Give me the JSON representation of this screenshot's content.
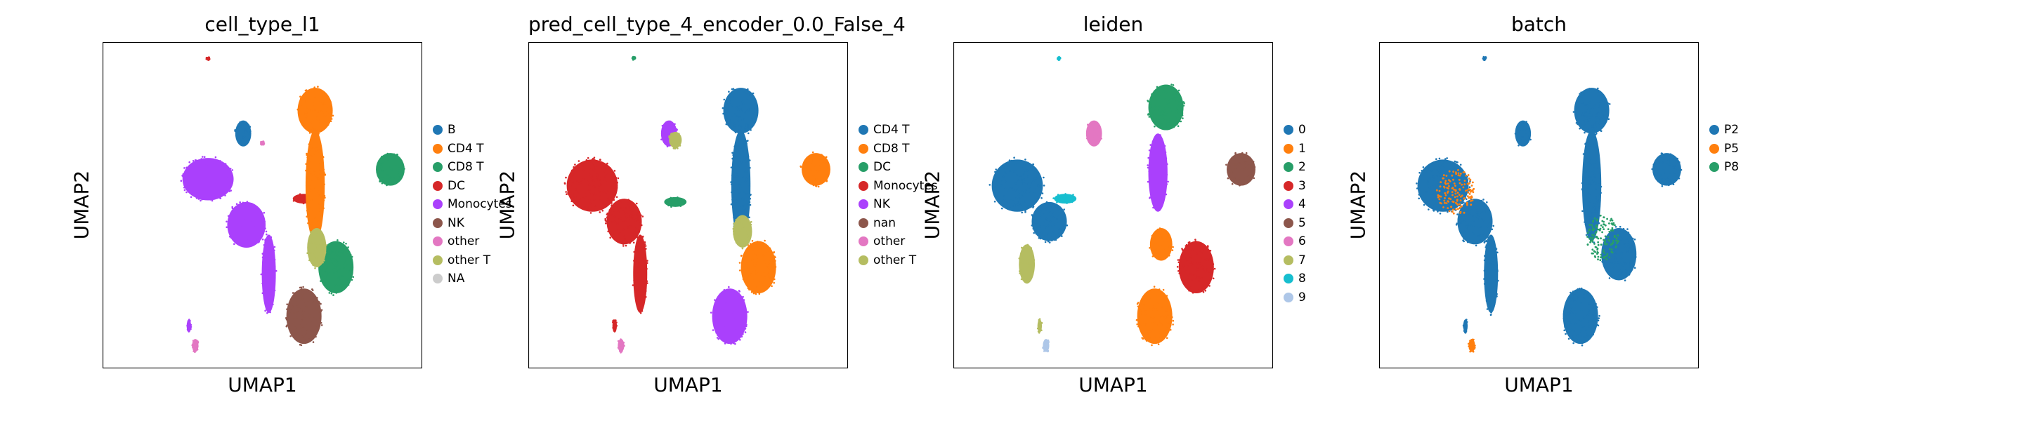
{
  "chart_data": [
    {
      "type": "scatter",
      "title": "cell_type_l1",
      "xlabel": "UMAP1",
      "ylabel": "UMAP2",
      "legend_placement": "right",
      "legend": [
        {
          "label": "B",
          "color": "#1f77b4"
        },
        {
          "label": "CD4 T",
          "color": "#ff7f0e"
        },
        {
          "label": "CD8 T",
          "color": "#279e68"
        },
        {
          "label": "DC",
          "color": "#d62728"
        },
        {
          "label": "Monocytes",
          "color": "#aa40fc"
        },
        {
          "label": "NK",
          "color": "#8c564b"
        },
        {
          "label": "other",
          "color": "#e377c2"
        },
        {
          "label": "other T",
          "color": "#b5bd61"
        },
        {
          "label": "NA",
          "color": "#cccccc"
        }
      ],
      "clusters": [
        {
          "cx": 0.33,
          "cy": 0.42,
          "rx": 0.08,
          "ry": 0.065,
          "color": "#aa40fc"
        },
        {
          "cx": 0.45,
          "cy": 0.56,
          "rx": 0.06,
          "ry": 0.07,
          "color": "#aa40fc"
        },
        {
          "cx": 0.52,
          "cy": 0.71,
          "rx": 0.022,
          "ry": 0.12,
          "color": "#aa40fc"
        },
        {
          "cx": 0.63,
          "cy": 0.48,
          "rx": 0.035,
          "ry": 0.015,
          "color": "#d62728"
        },
        {
          "cx": 0.44,
          "cy": 0.28,
          "rx": 0.025,
          "ry": 0.04,
          "color": "#1f77b4"
        },
        {
          "cx": 0.665,
          "cy": 0.21,
          "rx": 0.055,
          "ry": 0.07,
          "color": "#ff7f0e"
        },
        {
          "cx": 0.665,
          "cy": 0.44,
          "rx": 0.03,
          "ry": 0.17,
          "color": "#ff7f0e"
        },
        {
          "cx": 0.73,
          "cy": 0.69,
          "rx": 0.055,
          "ry": 0.08,
          "color": "#279e68"
        },
        {
          "cx": 0.9,
          "cy": 0.39,
          "rx": 0.045,
          "ry": 0.05,
          "color": "#279e68"
        },
        {
          "cx": 0.67,
          "cy": 0.63,
          "rx": 0.03,
          "ry": 0.06,
          "color": "#b5bd61"
        },
        {
          "cx": 0.63,
          "cy": 0.84,
          "rx": 0.055,
          "ry": 0.085,
          "color": "#8c564b"
        },
        {
          "cx": 0.29,
          "cy": 0.93,
          "rx": 0.01,
          "ry": 0.02,
          "color": "#e377c2"
        },
        {
          "cx": 0.27,
          "cy": 0.87,
          "rx": 0.007,
          "ry": 0.02,
          "color": "#aa40fc"
        },
        {
          "cx": 0.33,
          "cy": 0.05,
          "rx": 0.005,
          "ry": 0.005,
          "color": "#d62728"
        },
        {
          "cx": 0.5,
          "cy": 0.31,
          "rx": 0.006,
          "ry": 0.006,
          "color": "#e377c2"
        }
      ]
    },
    {
      "type": "scatter",
      "title": "pred_cell_type_4_encoder_0.0_False_4",
      "xlabel": "UMAP1",
      "ylabel": "UMAP2",
      "legend_placement": "right",
      "legend": [
        {
          "label": "CD4 T",
          "color": "#1f77b4"
        },
        {
          "label": "CD8 T",
          "color": "#ff7f0e"
        },
        {
          "label": "DC",
          "color": "#279e68"
        },
        {
          "label": "Monocytes",
          "color": "#d62728"
        },
        {
          "label": "NK",
          "color": "#aa40fc"
        },
        {
          "label": "nan",
          "color": "#8c564b"
        },
        {
          "label": "other",
          "color": "#e377c2"
        },
        {
          "label": "other T",
          "color": "#b5bd61"
        }
      ],
      "clusters": [
        {
          "cx": 0.2,
          "cy": 0.44,
          "rx": 0.08,
          "ry": 0.08,
          "color": "#d62728"
        },
        {
          "cx": 0.3,
          "cy": 0.55,
          "rx": 0.055,
          "ry": 0.07,
          "color": "#d62728"
        },
        {
          "cx": 0.35,
          "cy": 0.71,
          "rx": 0.022,
          "ry": 0.12,
          "color": "#d62728"
        },
        {
          "cx": 0.46,
          "cy": 0.49,
          "rx": 0.035,
          "ry": 0.015,
          "color": "#279e68"
        },
        {
          "cx": 0.44,
          "cy": 0.28,
          "rx": 0.025,
          "ry": 0.04,
          "color": "#aa40fc"
        },
        {
          "cx": 0.46,
          "cy": 0.3,
          "rx": 0.02,
          "ry": 0.025,
          "color": "#b5bd61"
        },
        {
          "cx": 0.665,
          "cy": 0.21,
          "rx": 0.055,
          "ry": 0.07,
          "color": "#1f77b4"
        },
        {
          "cx": 0.665,
          "cy": 0.44,
          "rx": 0.03,
          "ry": 0.17,
          "color": "#1f77b4"
        },
        {
          "cx": 0.72,
          "cy": 0.69,
          "rx": 0.055,
          "ry": 0.08,
          "color": "#ff7f0e"
        },
        {
          "cx": 0.9,
          "cy": 0.39,
          "rx": 0.045,
          "ry": 0.05,
          "color": "#ff7f0e"
        },
        {
          "cx": 0.67,
          "cy": 0.58,
          "rx": 0.03,
          "ry": 0.05,
          "color": "#b5bd61"
        },
        {
          "cx": 0.63,
          "cy": 0.84,
          "rx": 0.055,
          "ry": 0.085,
          "color": "#aa40fc"
        },
        {
          "cx": 0.29,
          "cy": 0.93,
          "rx": 0.01,
          "ry": 0.02,
          "color": "#e377c2"
        },
        {
          "cx": 0.27,
          "cy": 0.87,
          "rx": 0.007,
          "ry": 0.02,
          "color": "#d62728"
        },
        {
          "cx": 0.33,
          "cy": 0.05,
          "rx": 0.005,
          "ry": 0.005,
          "color": "#279e68"
        }
      ]
    },
    {
      "type": "scatter",
      "title": "leiden",
      "xlabel": "UMAP1",
      "ylabel": "UMAP2",
      "legend_placement": "right",
      "legend": [
        {
          "label": "0",
          "color": "#1f77b4"
        },
        {
          "label": "1",
          "color": "#ff7f0e"
        },
        {
          "label": "2",
          "color": "#279e68"
        },
        {
          "label": "3",
          "color": "#d62728"
        },
        {
          "label": "4",
          "color": "#aa40fc"
        },
        {
          "label": "5",
          "color": "#8c564b"
        },
        {
          "label": "6",
          "color": "#e377c2"
        },
        {
          "label": "7",
          "color": "#b5bd61"
        },
        {
          "label": "8",
          "color": "#17becf"
        },
        {
          "label": "9",
          "color": "#aec7e8"
        }
      ],
      "clusters": [
        {
          "cx": 0.2,
          "cy": 0.44,
          "rx": 0.08,
          "ry": 0.08,
          "color": "#1f77b4"
        },
        {
          "cx": 0.3,
          "cy": 0.55,
          "rx": 0.055,
          "ry": 0.06,
          "color": "#1f77b4"
        },
        {
          "cx": 0.23,
          "cy": 0.68,
          "rx": 0.025,
          "ry": 0.06,
          "color": "#b5bd61"
        },
        {
          "cx": 0.35,
          "cy": 0.48,
          "rx": 0.035,
          "ry": 0.015,
          "color": "#17becf"
        },
        {
          "cx": 0.44,
          "cy": 0.28,
          "rx": 0.025,
          "ry": 0.04,
          "color": "#e377c2"
        },
        {
          "cx": 0.665,
          "cy": 0.2,
          "rx": 0.055,
          "ry": 0.07,
          "color": "#279e68"
        },
        {
          "cx": 0.64,
          "cy": 0.4,
          "rx": 0.03,
          "ry": 0.12,
          "color": "#aa40fc"
        },
        {
          "cx": 0.65,
          "cy": 0.62,
          "rx": 0.035,
          "ry": 0.05,
          "color": "#ff7f0e"
        },
        {
          "cx": 0.76,
          "cy": 0.69,
          "rx": 0.055,
          "ry": 0.08,
          "color": "#d62728"
        },
        {
          "cx": 0.9,
          "cy": 0.39,
          "rx": 0.045,
          "ry": 0.05,
          "color": "#8c564b"
        },
        {
          "cx": 0.63,
          "cy": 0.84,
          "rx": 0.055,
          "ry": 0.085,
          "color": "#ff7f0e"
        },
        {
          "cx": 0.29,
          "cy": 0.93,
          "rx": 0.01,
          "ry": 0.02,
          "color": "#aec7e8"
        },
        {
          "cx": 0.27,
          "cy": 0.87,
          "rx": 0.007,
          "ry": 0.02,
          "color": "#b5bd61"
        },
        {
          "cx": 0.33,
          "cy": 0.05,
          "rx": 0.005,
          "ry": 0.005,
          "color": "#17becf"
        }
      ]
    },
    {
      "type": "scatter",
      "title": "batch",
      "xlabel": "UMAP1",
      "ylabel": "UMAP2",
      "legend_placement": "right",
      "legend": [
        {
          "label": "P2",
          "color": "#1f77b4"
        },
        {
          "label": "P5",
          "color": "#ff7f0e"
        },
        {
          "label": "P8",
          "color": "#279e68"
        }
      ],
      "clusters": [
        {
          "cx": 0.2,
          "cy": 0.44,
          "rx": 0.08,
          "ry": 0.08,
          "color": "#1f77b4"
        },
        {
          "cx": 0.3,
          "cy": 0.55,
          "rx": 0.055,
          "ry": 0.07,
          "color": "#1f77b4"
        },
        {
          "cx": 0.35,
          "cy": 0.71,
          "rx": 0.022,
          "ry": 0.12,
          "color": "#1f77b4"
        },
        {
          "cx": 0.45,
          "cy": 0.28,
          "rx": 0.025,
          "ry": 0.04,
          "color": "#1f77b4"
        },
        {
          "cx": 0.665,
          "cy": 0.21,
          "rx": 0.055,
          "ry": 0.07,
          "color": "#1f77b4"
        },
        {
          "cx": 0.665,
          "cy": 0.44,
          "rx": 0.03,
          "ry": 0.17,
          "color": "#1f77b4"
        },
        {
          "cx": 0.75,
          "cy": 0.65,
          "rx": 0.055,
          "ry": 0.08,
          "color": "#1f77b4"
        },
        {
          "cx": 0.9,
          "cy": 0.39,
          "rx": 0.045,
          "ry": 0.05,
          "color": "#1f77b4"
        },
        {
          "cx": 0.63,
          "cy": 0.84,
          "rx": 0.055,
          "ry": 0.085,
          "color": "#1f77b4"
        },
        {
          "cx": 0.29,
          "cy": 0.93,
          "rx": 0.01,
          "ry": 0.02,
          "color": "#ff7f0e"
        },
        {
          "cx": 0.27,
          "cy": 0.87,
          "rx": 0.007,
          "ry": 0.02,
          "color": "#1f77b4"
        },
        {
          "cx": 0.33,
          "cy": 0.05,
          "rx": 0.005,
          "ry": 0.005,
          "color": "#1f77b4"
        },
        {
          "cx": 0.24,
          "cy": 0.46,
          "rx": 0.06,
          "ry": 0.07,
          "color": "#ff7f0e",
          "sparse": true
        },
        {
          "cx": 0.7,
          "cy": 0.6,
          "rx": 0.05,
          "ry": 0.07,
          "color": "#279e68",
          "sparse": true
        }
      ]
    }
  ]
}
